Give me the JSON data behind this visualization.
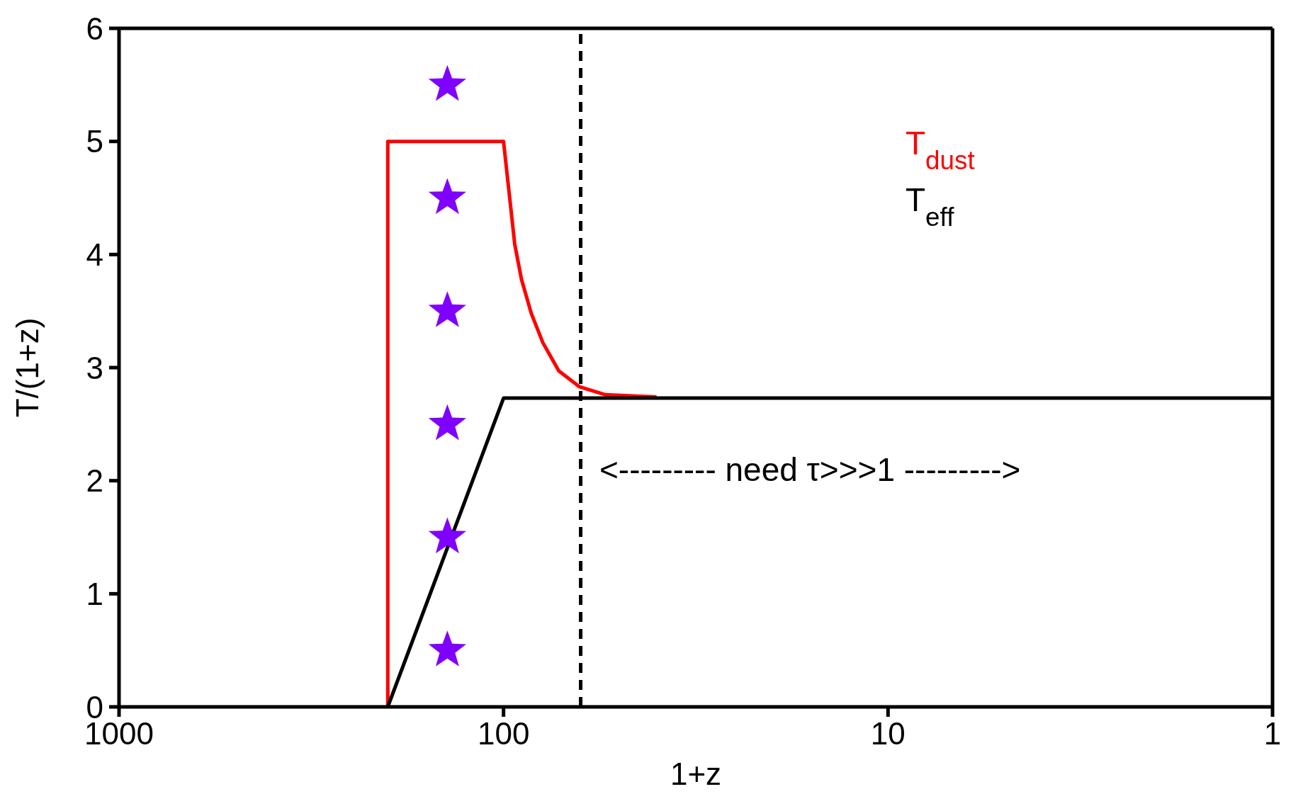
{
  "chart_data": {
    "type": "line",
    "xlabel": "1+z",
    "ylabel": "T/(1+z)",
    "log": "x",
    "xlim": [
      1000,
      1
    ],
    "xticks": [
      1000,
      100,
      10,
      1
    ],
    "ylim": [
      0,
      6
    ],
    "yticks": [
      0,
      1,
      2,
      3,
      4,
      5,
      6
    ],
    "legend": "top right",
    "marker": "none",
    "line_style": "solid",
    "series": [
      {
        "name": "T$_{dust}$",
        "color": "#ff0000",
        "x": [
          200,
          200,
          100,
          93.5,
          89.8,
          84.7,
          79,
          71.8,
          63.4,
          54.3,
          40
        ],
        "values": [
          0,
          5,
          5,
          4.09,
          3.78,
          3.48,
          3.22,
          2.97,
          2.83,
          2.76,
          2.74
        ]
      },
      {
        "name": "T$_{eff}$",
        "color": "#000000",
        "x": [
          200,
          100,
          1
        ],
        "values": [
          0,
          2.73,
          2.73
        ]
      },
      {
        "type": "scatter",
        "marker": "star",
        "color": "#7f00ff",
        "x": [
          140,
          140,
          140,
          140,
          140,
          140
        ],
        "values": [
          0.5,
          1.5,
          2.5,
          3.5,
          4.5,
          5.5
        ]
      }
    ],
    "ref_lines": [
      {
        "axis": "x",
        "value": 63,
        "line_style": "dashed",
        "color": "#000000"
      }
    ],
    "annotations": [
      "<--------- need τ>>>1 --------->"
    ]
  }
}
